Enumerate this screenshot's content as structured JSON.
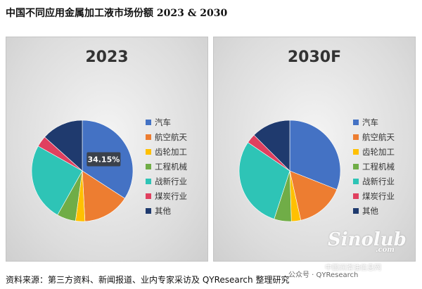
{
  "page": {
    "title": "中国不同应用金属加工液市场份额 2023 & 2030",
    "source": "资料来源：第三方资料、新闻报道、业内专家采访及 QYResearch 整理研究",
    "wechat": "公众号 · QYResearch",
    "watermark_logo": "Sinolub",
    "watermark_logo_sub": ".com",
    "watermark_text": "中国润滑油信息网"
  },
  "chart_data": [
    {
      "type": "pie",
      "title": "2023",
      "categories": [
        "汽车",
        "航空航天",
        "齿轮加工",
        "工程机械",
        "战新行业",
        "煤炭行业",
        "其他"
      ],
      "values": [
        34.15,
        15.0,
        3.0,
        6.0,
        25.0,
        3.5,
        13.35
      ],
      "colors": [
        "#4472c4",
        "#ed7d31",
        "#ffc000",
        "#70ad47",
        "#2ec4b6",
        "#e0405f",
        "#1f3a6e"
      ],
      "data_labels": [
        "34.15%",
        "",
        "",
        "",
        "",
        "",
        ""
      ],
      "legend": "right"
    },
    {
      "type": "pie",
      "title": "2030F",
      "categories": [
        "汽车",
        "航空航天",
        "齿轮加工",
        "工程机械",
        "战新行业",
        "煤炭行业",
        "其他"
      ],
      "values": [
        31.0,
        15.5,
        3.0,
        5.5,
        29.5,
        3.0,
        12.5
      ],
      "colors": [
        "#4472c4",
        "#ed7d31",
        "#ffc000",
        "#70ad47",
        "#2ec4b6",
        "#e0405f",
        "#1f3a6e"
      ],
      "data_labels": [
        "",
        "",
        "",
        "",
        "",
        "",
        ""
      ],
      "legend": "right"
    }
  ]
}
